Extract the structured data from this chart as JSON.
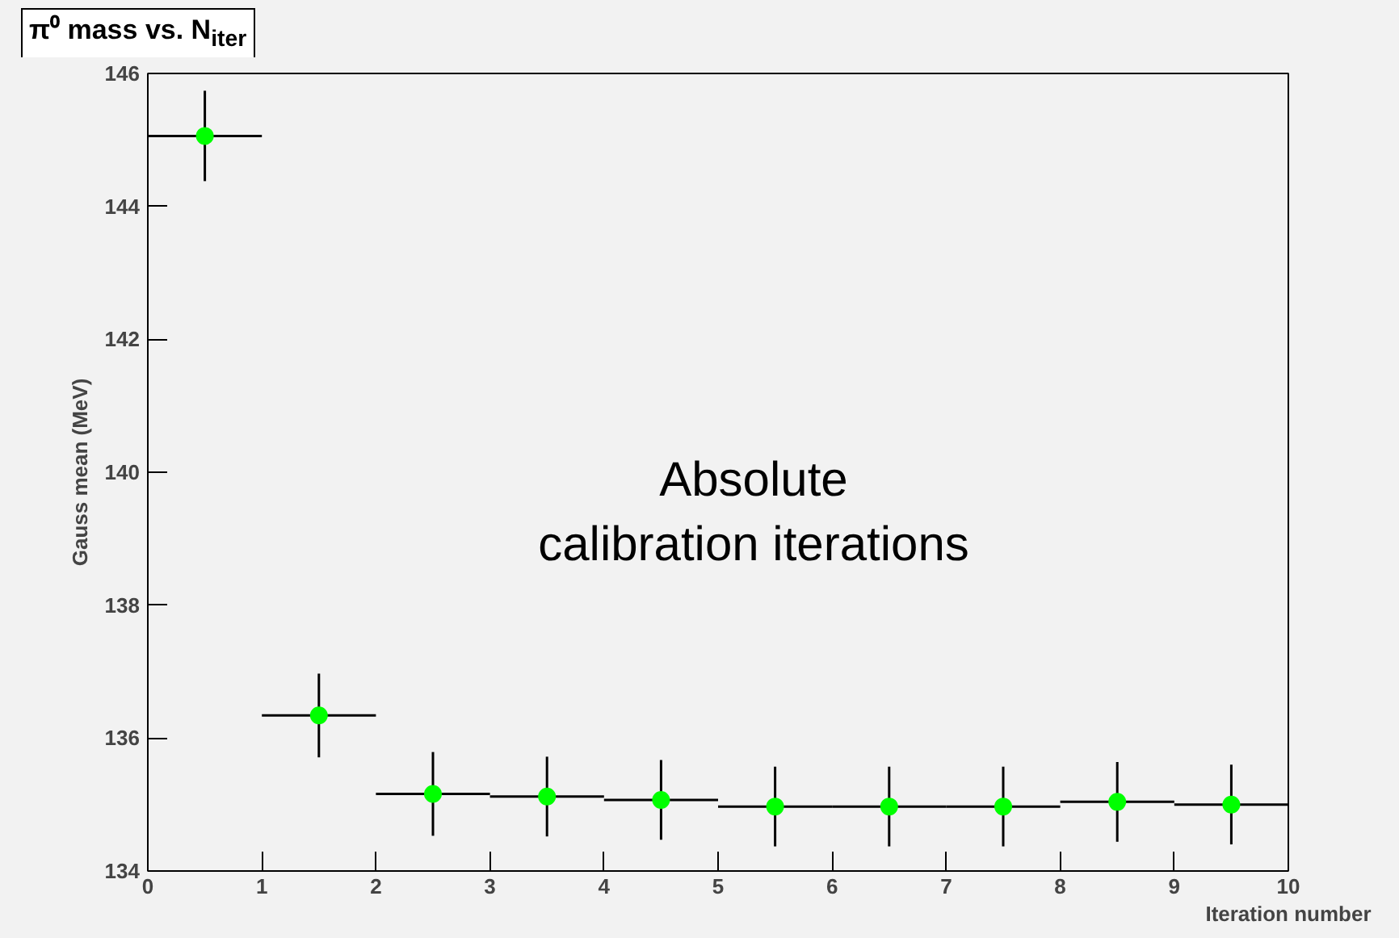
{
  "chart_data": {
    "type": "scatter",
    "title": "π⁰ mass vs. N$_{iter}$",
    "xlabel": "Iteration number",
    "ylabel": "Gauss mean (MeV)",
    "annotations": [
      "Absolute\ncalibration iterations"
    ],
    "x": [
      0.5,
      1.5,
      2.5,
      3.5,
      4.5,
      5.5,
      6.5,
      7.5,
      8.5,
      9.5
    ],
    "series": [
      {
        "color": "#00ff00",
        "values": [
          145.06,
          136.34,
          135.16,
          135.12,
          135.07,
          134.97,
          134.97,
          134.97,
          135.04,
          135.0
        ],
        "errors": [
          0.68,
          0.63,
          0.63,
          0.6,
          0.6,
          0.6,
          0.6,
          0.6,
          0.6,
          0.6
        ],
        "xerrors": [
          0.5,
          0.5,
          0.5,
          0.5,
          0.5,
          0.5,
          0.5,
          0.5,
          0.5,
          0.5
        ]
      }
    ],
    "xlim": [
      0,
      10
    ],
    "xticks": [
      0,
      1,
      2,
      3,
      4,
      5,
      6,
      7,
      8,
      9,
      10
    ],
    "ylim": [
      134,
      146
    ],
    "yticks": [
      134,
      136,
      138,
      140,
      142,
      144,
      146
    ],
    "marker": "circle",
    "grid": false
  }
}
